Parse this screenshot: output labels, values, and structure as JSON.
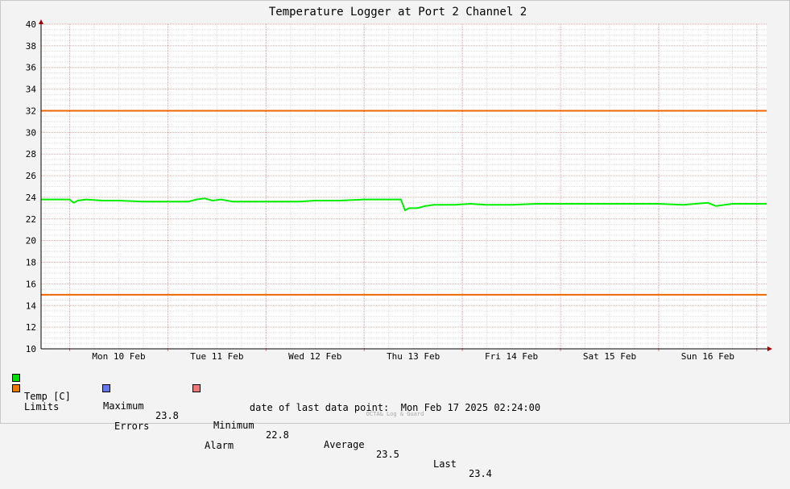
{
  "chart_data": {
    "type": "line",
    "title": "Temperature Logger at Port 2 Channel 2",
    "ylim": [
      10,
      40
    ],
    "yticks": [
      10,
      12,
      14,
      16,
      18,
      20,
      22,
      24,
      26,
      28,
      30,
      32,
      34,
      36,
      38,
      40
    ],
    "xlim": [
      "2025-02-09 17:00",
      "2025-02-17 02:24"
    ],
    "xtick_labels": [
      "Mon 10 Feb",
      "Tue 11 Feb",
      "Wed 12 Feb",
      "Thu 13 Feb",
      "Fri 14 Feb",
      "Sat 15 Feb",
      "Sun 16 Feb"
    ],
    "grid": true,
    "series": [
      {
        "name": "Temp [C]",
        "color": "#00ee00",
        "x": [
          "2025-02-09 17:00",
          "2025-02-09 21:00",
          "2025-02-10 00:00",
          "2025-02-10 01:00",
          "2025-02-10 02:00",
          "2025-02-10 04:00",
          "2025-02-10 08:00",
          "2025-02-10 12:00",
          "2025-02-10 18:00",
          "2025-02-11 00:00",
          "2025-02-11 05:00",
          "2025-02-11 07:00",
          "2025-02-11 09:00",
          "2025-02-11 11:00",
          "2025-02-11 13:00",
          "2025-02-11 16:00",
          "2025-02-11 20:00",
          "2025-02-12 02:00",
          "2025-02-12 08:00",
          "2025-02-12 12:00",
          "2025-02-12 18:00",
          "2025-02-13 00:00",
          "2025-02-13 06:00",
          "2025-02-13 09:00",
          "2025-02-13 10:00",
          "2025-02-13 11:00",
          "2025-02-13 13:00",
          "2025-02-13 15:00",
          "2025-02-13 17:00",
          "2025-02-13 19:00",
          "2025-02-13 22:00",
          "2025-02-14 02:00",
          "2025-02-14 06:00",
          "2025-02-14 12:00",
          "2025-02-14 18:00",
          "2025-02-15 00:00",
          "2025-02-15 06:00",
          "2025-02-15 12:00",
          "2025-02-15 18:00",
          "2025-02-16 00:00",
          "2025-02-16 06:00",
          "2025-02-16 12:00",
          "2025-02-16 14:00",
          "2025-02-16 18:00",
          "2025-02-17 00:00",
          "2025-02-17 02:24"
        ],
        "values": [
          23.8,
          23.8,
          23.8,
          23.5,
          23.7,
          23.8,
          23.7,
          23.7,
          23.6,
          23.6,
          23.6,
          23.8,
          23.9,
          23.7,
          23.8,
          23.6,
          23.6,
          23.6,
          23.6,
          23.7,
          23.7,
          23.8,
          23.8,
          23.8,
          22.8,
          23.0,
          23.0,
          23.2,
          23.3,
          23.3,
          23.3,
          23.4,
          23.3,
          23.3,
          23.4,
          23.4,
          23.4,
          23.4,
          23.4,
          23.4,
          23.3,
          23.5,
          23.2,
          23.4,
          23.4,
          23.4
        ]
      },
      {
        "name": "Limits",
        "color": "#ee6600",
        "values": [
          32,
          15
        ]
      }
    ],
    "legend": [
      {
        "label": "Temp [C]",
        "color": "#00dd00"
      },
      {
        "label": "Limits",
        "color": "#ee7700"
      },
      {
        "label": "Errors",
        "color": "#6677ee"
      },
      {
        "label": "Alarm",
        "color": "#ee7777"
      }
    ],
    "stats": [
      {
        "label": "Maximum",
        "value": "23.8"
      },
      {
        "label": "Minimum",
        "value": "22.8"
      },
      {
        "label": "Average",
        "value": "23.5"
      },
      {
        "label": "Last",
        "value": "23.4"
      }
    ]
  },
  "footer": {
    "date_label": "date of last data point:",
    "date_value": "Mon Feb 17 2025 02:24:00",
    "credit": "OCTA& Log & Guard"
  }
}
